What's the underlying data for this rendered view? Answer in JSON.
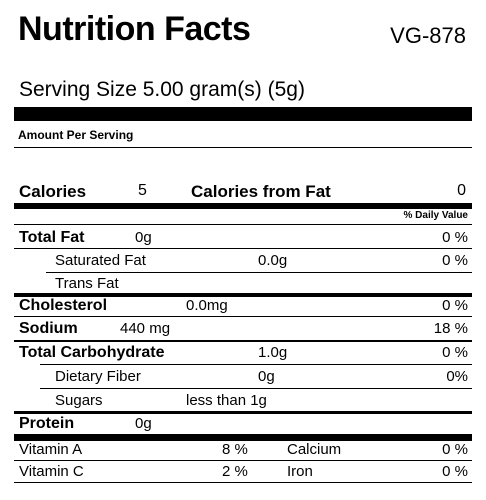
{
  "header": {
    "title": "Nutrition Facts",
    "product_code": "VG-878"
  },
  "serving_size": "Serving Size 5.00 gram(s) (5g)",
  "amount_per_serving": "Amount Per Serving",
  "calories": {
    "label": "Calories",
    "value": "5",
    "from_fat_label": "Calories from Fat",
    "from_fat_value": "0"
  },
  "daily_value_header": "% Daily Value",
  "nutrients": {
    "total_fat": {
      "label": "Total Fat",
      "amount": "0g",
      "dv": "0 %"
    },
    "saturated_fat": {
      "label": "Saturated Fat",
      "amount": "0.0g",
      "dv": "0 %"
    },
    "trans_fat": {
      "label": "Trans Fat"
    },
    "cholesterol": {
      "label": "Cholesterol",
      "amount": "0.0mg",
      "dv": "0 %"
    },
    "sodium": {
      "label": "Sodium",
      "amount": "440 mg",
      "dv": "18 %"
    },
    "total_carbohydrate": {
      "label": "Total Carbohydrate",
      "amount": "1.0g",
      "dv": "0 %"
    },
    "dietary_fiber": {
      "label": "Dietary Fiber",
      "amount": "0g",
      "dv": "0%"
    },
    "sugars": {
      "label": "Sugars",
      "amount": "less than 1g"
    },
    "protein": {
      "label": "Protein",
      "amount": "0g"
    }
  },
  "vitamins": {
    "vitamin_a": {
      "label": "Vitamin A",
      "dv": "8 %"
    },
    "calcium": {
      "label": "Calcium",
      "dv": "0 %"
    },
    "vitamin_c": {
      "label": "Vitamin C",
      "dv": "2 %"
    },
    "iron": {
      "label": "Iron",
      "dv": "0 %"
    }
  }
}
